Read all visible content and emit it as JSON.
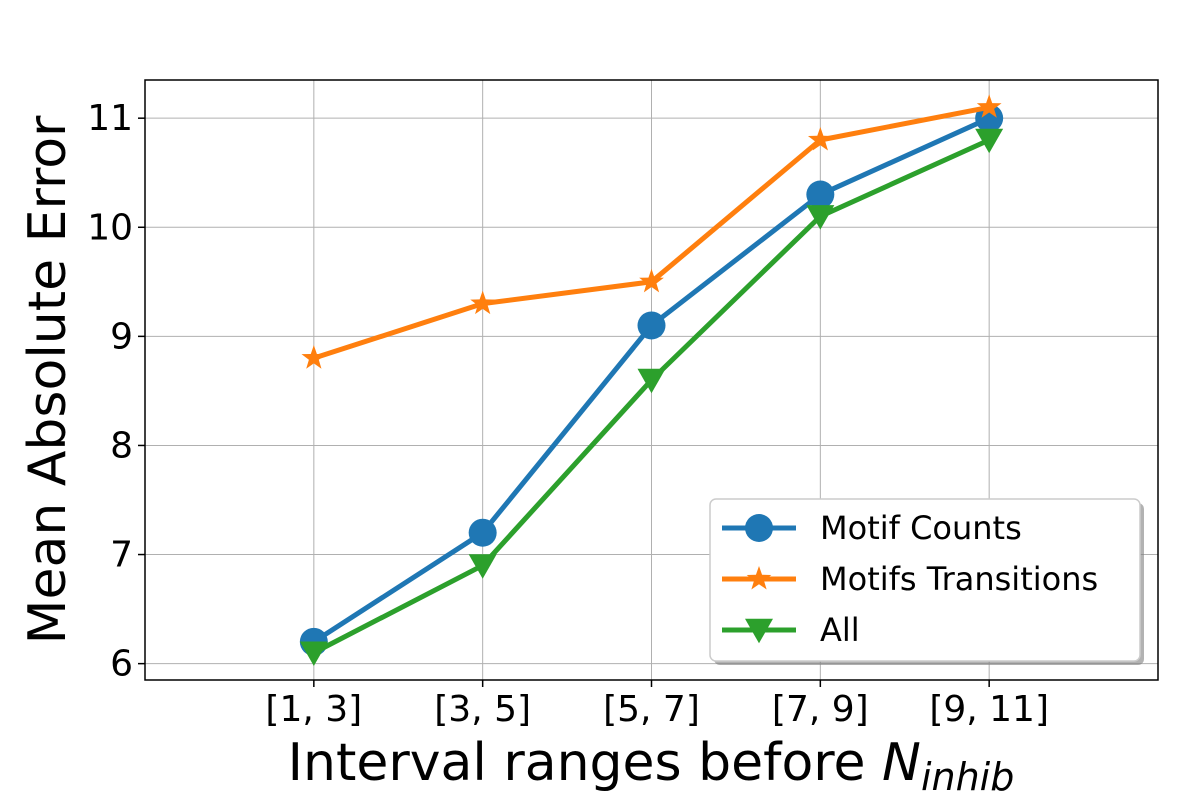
{
  "colors": {
    "series_1": "#1f77b4",
    "series_2": "#ff7f0e",
    "series_3": "#2ca02c",
    "grid": "#b0b0b0",
    "axes": "#000000",
    "background": "#ffffff"
  },
  "chart_data": {
    "type": "line",
    "title": "",
    "xlabel_main": "Interval ranges before ",
    "xlabel_symbol": "N",
    "xlabel_subscript": "inhib",
    "ylabel": "Mean Absolute Error",
    "categories": [
      "[1, 3]",
      "[3, 5]",
      "[5, 7]",
      "[7, 9]",
      "[9, 11]"
    ],
    "xlim": [
      -1,
      5
    ],
    "ylim": [
      5.85,
      11.35
    ],
    "yticks": [
      "6",
      "7",
      "8",
      "9",
      "10",
      "11"
    ],
    "grid": true,
    "legend_position": "lower right",
    "series": [
      {
        "name": "Motif Counts",
        "marker": "circle",
        "values": [
          6.2,
          7.2,
          9.1,
          10.3,
          11.0
        ]
      },
      {
        "name": "Motifs Transitions",
        "marker": "star",
        "values": [
          8.8,
          9.3,
          9.5,
          10.8,
          11.1
        ]
      },
      {
        "name": "All",
        "marker": "triangle-down",
        "values": [
          6.1,
          6.9,
          8.6,
          10.1,
          10.8
        ]
      }
    ]
  }
}
